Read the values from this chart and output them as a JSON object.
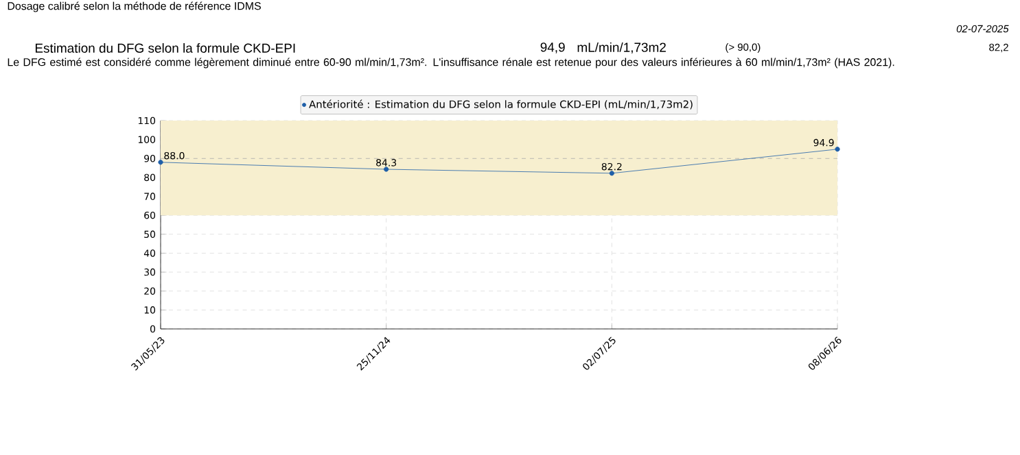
{
  "chart_data": {
    "type": "line",
    "categories": [
      "31/05/23",
      "25/11/24",
      "02/07/25",
      "08/06/26"
    ],
    "series": [
      {
        "name": "Antériorité : Estimation du DFG selon la formule CKD-EPI (mL/min/1,73m2)",
        "color": "#1f5fa8",
        "values": [
          88.0,
          84.3,
          82.2,
          94.9
        ],
        "value_labels": [
          "88.0",
          "84.3",
          "82.2",
          "94.9"
        ]
      }
    ],
    "ylim": [
      0,
      110
    ],
    "yticks": [
      0,
      10,
      20,
      30,
      40,
      50,
      60,
      70,
      80,
      90,
      100,
      110
    ],
    "bands": [
      {
        "axis": "y",
        "from": 60,
        "to": 110,
        "color": "#f7efcf"
      }
    ],
    "ref_lines": [
      {
        "axis": "y",
        "value": 90,
        "color": "#aaaaaa",
        "line_style": "dashed"
      }
    ],
    "grid": true,
    "legend": "top",
    "marker": "circle",
    "line_style": "solid",
    "annotations": [
      "Dosage calibré selon la méthode de référence IDMS",
      "02-07-2025",
      "Estimation du DFG selon la formule CKD-EPI",
      "94,9",
      "mL/min/1,73m2",
      "(> 90,0)",
      "82,2",
      "Le DFG estimé est considéré comme légèrement diminué entre 60-90 ml/min/1,73m². L'insuffisance rénale est retenue pour des valeurs inférieures à 60 ml/min/1,73m² (HAS 2021)."
    ]
  }
}
